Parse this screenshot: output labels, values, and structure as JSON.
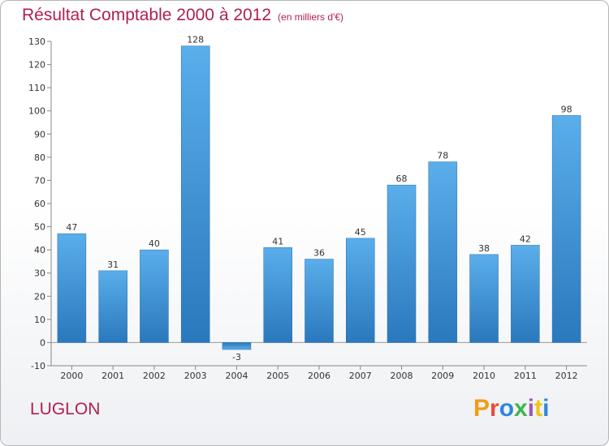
{
  "chart_data": {
    "type": "bar",
    "title": "Résultat Comptable 2000 à 2012",
    "subtitle": "(en milliers d'€)",
    "xlabel": "",
    "ylabel": "",
    "categories": [
      "2000",
      "2001",
      "2002",
      "2003",
      "2004",
      "2005",
      "2006",
      "2007",
      "2008",
      "2009",
      "2010",
      "2011",
      "2012"
    ],
    "values": [
      47,
      31,
      40,
      128,
      -3,
      41,
      36,
      45,
      68,
      78,
      38,
      42,
      98
    ],
    "ylim": [
      -10,
      130
    ],
    "yticks": [
      -10,
      0,
      10,
      20,
      30,
      40,
      50,
      60,
      70,
      80,
      90,
      100,
      110,
      120,
      130
    ],
    "grid": false,
    "legend": "none",
    "bar_color": "#3a8fd6"
  },
  "footer": {
    "town": "LUGLON",
    "logo_text": "Proxiti",
    "logo_colors": [
      "#f39c12",
      "#e84c3d",
      "#2e86de",
      "#3db54a",
      "#9b59b6",
      "#f1c40f",
      "#2e86de"
    ]
  }
}
